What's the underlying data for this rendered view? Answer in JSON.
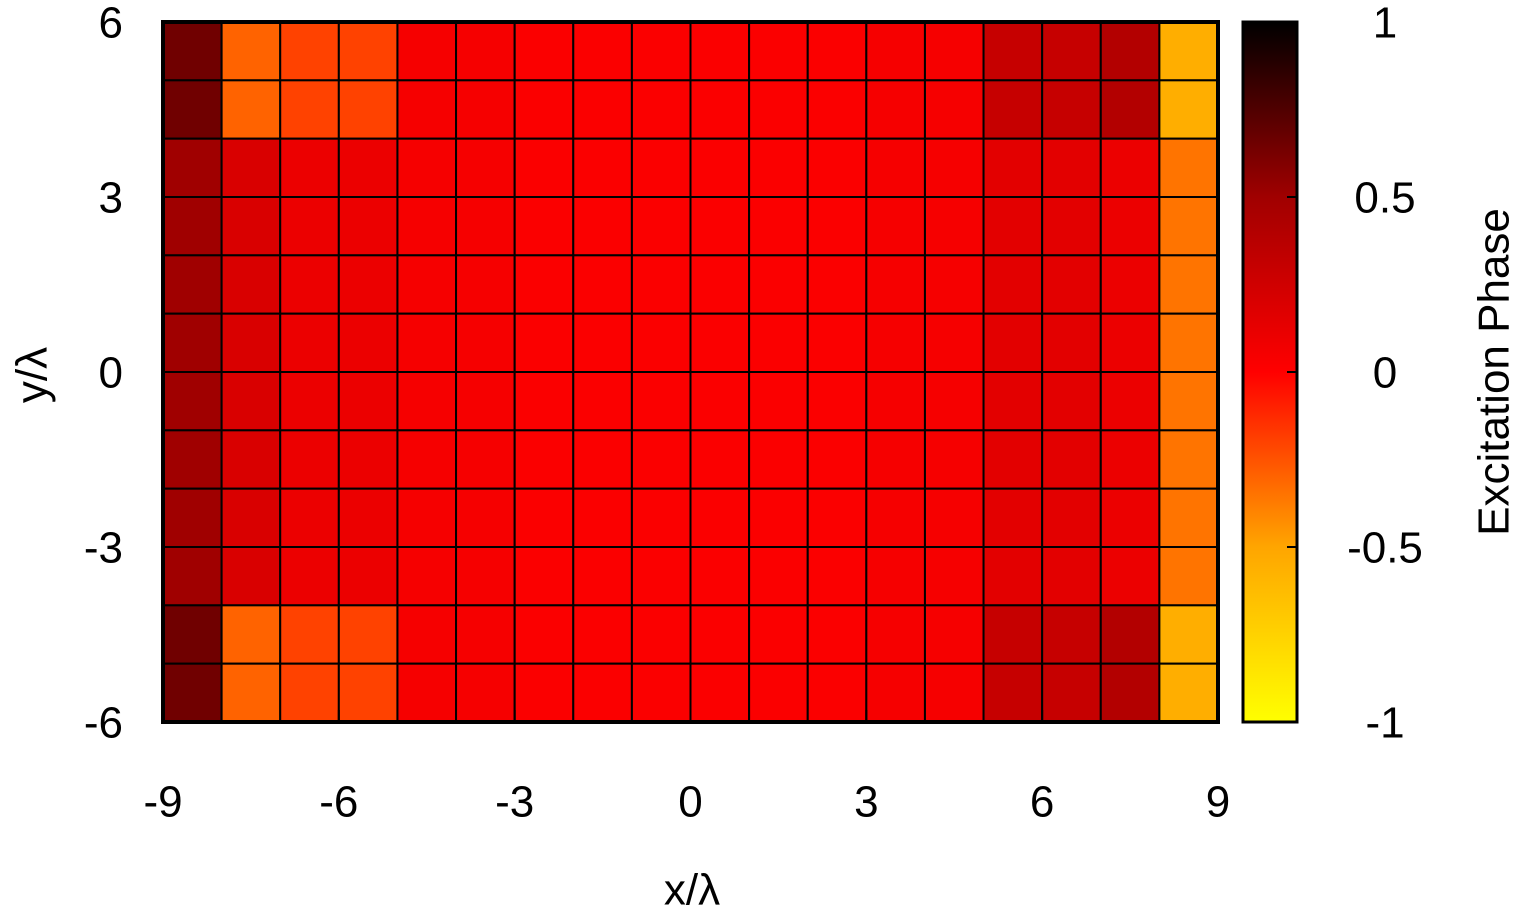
{
  "chart_data": {
    "type": "heatmap",
    "xlabel": "x/λ",
    "ylabel": "y/λ",
    "colorbar_label": "Excitation Phase",
    "xlim": [
      -9,
      9
    ],
    "ylim": [
      -6,
      6
    ],
    "xticks": [
      -9,
      -6,
      -3,
      0,
      3,
      6,
      9
    ],
    "yticks": [
      -6,
      -3,
      0,
      3,
      6
    ],
    "cblim": [
      -1,
      1
    ],
    "cbticks": [
      -1,
      -0.5,
      0,
      0.5,
      1
    ],
    "colormap": [
      {
        "value": -1,
        "color": "#ffff00"
      },
      {
        "value": -0.5,
        "color": "#ffa500"
      },
      {
        "value": 0,
        "color": "#ff0000"
      },
      {
        "value": 0.5,
        "color": "#a00000"
      },
      {
        "value": 1,
        "color": "#000000"
      }
    ],
    "z": [
      [
        0.65,
        -0.3,
        -0.2,
        -0.2,
        0.05,
        0.05,
        0.02,
        0.02,
        0.02,
        0.02,
        0.02,
        0.02,
        0.05,
        0.05,
        0.3,
        0.3,
        0.4,
        -0.55
      ],
      [
        0.65,
        -0.3,
        -0.2,
        -0.2,
        0.05,
        0.05,
        0.02,
        0.02,
        0.02,
        0.02,
        0.02,
        0.02,
        0.05,
        0.05,
        0.3,
        0.3,
        0.4,
        -0.55
      ],
      [
        0.5,
        0.2,
        0.1,
        0.1,
        0.05,
        0.05,
        0.02,
        0.02,
        0.02,
        0.02,
        0.02,
        0.02,
        0.05,
        0.05,
        0.15,
        0.15,
        0.1,
        -0.35
      ],
      [
        0.5,
        0.2,
        0.1,
        0.1,
        0.05,
        0.05,
        0.02,
        0.02,
        0.02,
        0.02,
        0.02,
        0.02,
        0.05,
        0.05,
        0.15,
        0.15,
        0.1,
        -0.35
      ],
      [
        0.5,
        0.2,
        0.1,
        0.1,
        0.05,
        0.05,
        0.02,
        0.02,
        0.02,
        0.02,
        0.02,
        0.02,
        0.05,
        0.05,
        0.15,
        0.15,
        0.1,
        -0.35
      ],
      [
        0.5,
        0.2,
        0.1,
        0.1,
        0.05,
        0.05,
        0.02,
        0.02,
        0.02,
        0.02,
        0.02,
        0.02,
        0.05,
        0.05,
        0.15,
        0.15,
        0.1,
        -0.35
      ],
      [
        0.5,
        0.2,
        0.1,
        0.1,
        0.05,
        0.05,
        0.02,
        0.02,
        0.02,
        0.02,
        0.02,
        0.02,
        0.05,
        0.05,
        0.15,
        0.15,
        0.1,
        -0.35
      ],
      [
        0.5,
        0.2,
        0.1,
        0.1,
        0.05,
        0.05,
        0.02,
        0.02,
        0.02,
        0.02,
        0.02,
        0.02,
        0.05,
        0.05,
        0.15,
        0.15,
        0.1,
        -0.35
      ],
      [
        0.5,
        0.2,
        0.1,
        0.1,
        0.05,
        0.05,
        0.02,
        0.02,
        0.02,
        0.02,
        0.02,
        0.02,
        0.05,
        0.05,
        0.15,
        0.15,
        0.1,
        -0.35
      ],
      [
        0.5,
        0.2,
        0.1,
        0.1,
        0.05,
        0.05,
        0.02,
        0.02,
        0.02,
        0.02,
        0.02,
        0.02,
        0.05,
        0.05,
        0.15,
        0.15,
        0.1,
        -0.35
      ],
      [
        0.65,
        -0.3,
        -0.2,
        -0.2,
        0.05,
        0.05,
        0.02,
        0.02,
        0.02,
        0.02,
        0.02,
        0.02,
        0.05,
        0.05,
        0.3,
        0.3,
        0.4,
        -0.55
      ],
      [
        0.65,
        -0.3,
        -0.2,
        -0.2,
        0.05,
        0.05,
        0.02,
        0.02,
        0.02,
        0.02,
        0.02,
        0.02,
        0.05,
        0.05,
        0.3,
        0.3,
        0.4,
        -0.55
      ]
    ]
  }
}
